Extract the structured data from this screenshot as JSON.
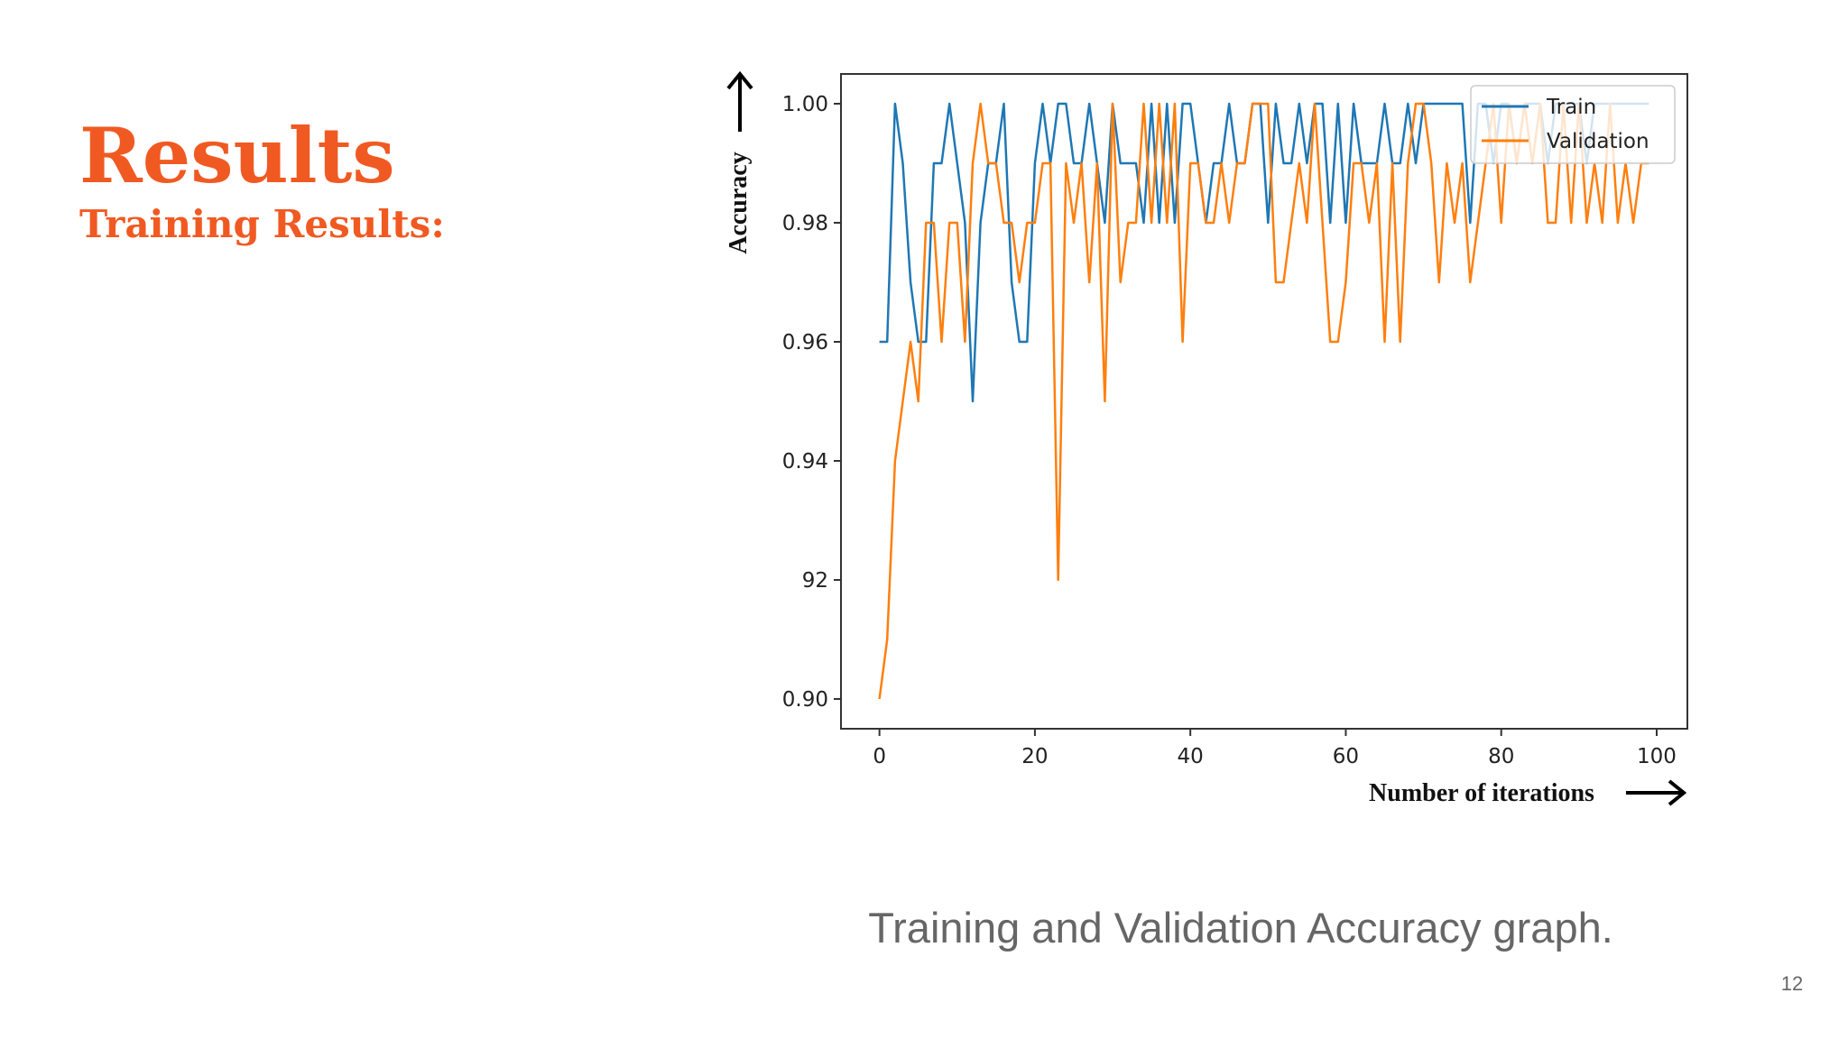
{
  "header": {
    "title": "Results",
    "subtitle": "Training Results:"
  },
  "caption": "Training and Validation Accuracy graph.",
  "page_number": "12",
  "chart_data": {
    "type": "line",
    "x_label": "Number of iterations",
    "y_label": "Accuracy",
    "x": [
      0,
      1,
      2,
      3,
      4,
      5,
      6,
      7,
      8,
      9,
      10,
      11,
      12,
      13,
      14,
      15,
      16,
      17,
      18,
      19,
      20,
      21,
      22,
      23,
      24,
      25,
      26,
      27,
      28,
      29,
      30,
      31,
      32,
      33,
      34,
      35,
      36,
      37,
      38,
      39,
      40,
      41,
      42,
      43,
      44,
      45,
      46,
      47,
      48,
      49,
      50,
      51,
      52,
      53,
      54,
      55,
      56,
      57,
      58,
      59,
      60,
      61,
      62,
      63,
      64,
      65,
      66,
      67,
      68,
      69,
      70,
      71,
      72,
      73,
      74,
      75,
      76,
      77,
      78,
      79,
      80,
      81,
      82,
      83,
      84,
      85,
      86,
      87,
      88,
      89,
      90,
      91,
      92,
      93,
      94,
      95,
      96,
      97,
      98,
      99
    ],
    "series": [
      {
        "name": "Train",
        "color": "#1f77b4",
        "values": [
          0.96,
          0.96,
          1.0,
          0.99,
          0.97,
          0.96,
          0.96,
          0.99,
          0.99,
          1.0,
          0.99,
          0.98,
          0.95,
          0.98,
          0.99,
          0.99,
          1.0,
          0.97,
          0.96,
          0.96,
          0.99,
          1.0,
          0.99,
          1.0,
          1.0,
          0.99,
          0.99,
          1.0,
          0.99,
          0.98,
          1.0,
          0.99,
          0.99,
          0.99,
          0.98,
          1.0,
          0.98,
          1.0,
          0.98,
          1.0,
          1.0,
          0.99,
          0.98,
          0.99,
          0.99,
          1.0,
          0.99,
          0.99,
          1.0,
          1.0,
          0.98,
          1.0,
          0.99,
          0.99,
          1.0,
          0.99,
          1.0,
          1.0,
          0.98,
          1.0,
          0.98,
          1.0,
          0.99,
          0.99,
          0.99,
          1.0,
          0.99,
          0.99,
          1.0,
          0.99,
          1.0,
          1.0,
          1.0,
          1.0,
          1.0,
          1.0,
          0.98,
          1.0,
          1.0,
          0.99,
          1.0,
          1.0,
          0.99,
          1.0,
          1.0,
          1.0,
          0.99,
          1.0,
          1.0,
          1.0,
          1.0,
          0.99,
          1.0,
          1.0,
          1.0,
          1.0,
          1.0,
          1.0,
          1.0,
          1.0
        ]
      },
      {
        "name": "Validation",
        "color": "#ff7f0e",
        "values": [
          0.9,
          0.91,
          0.94,
          0.95,
          0.96,
          0.95,
          0.98,
          0.98,
          0.96,
          0.98,
          0.98,
          0.96,
          0.99,
          1.0,
          0.99,
          0.99,
          0.98,
          0.98,
          0.97,
          0.98,
          0.98,
          0.99,
          0.99,
          0.92,
          0.99,
          0.98,
          0.99,
          0.97,
          0.99,
          0.95,
          1.0,
          0.97,
          0.98,
          0.98,
          1.0,
          0.98,
          1.0,
          0.98,
          1.0,
          0.96,
          0.99,
          0.99,
          0.98,
          0.98,
          0.99,
          0.98,
          0.99,
          0.99,
          1.0,
          1.0,
          1.0,
          0.97,
          0.97,
          0.98,
          0.99,
          0.98,
          1.0,
          0.98,
          0.96,
          0.96,
          0.97,
          0.99,
          0.99,
          0.98,
          0.99,
          0.96,
          0.99,
          0.96,
          0.99,
          1.0,
          1.0,
          0.99,
          0.97,
          0.99,
          0.98,
          0.99,
          0.97,
          0.98,
          0.99,
          1.0,
          0.98,
          1.0,
          0.99,
          1.0,
          0.99,
          1.0,
          0.98,
          0.98,
          1.0,
          0.98,
          1.0,
          0.98,
          0.99,
          0.98,
          1.0,
          0.98,
          0.99,
          0.98,
          0.99,
          0.99
        ]
      }
    ],
    "xlim": [
      -4.95,
      103.95
    ],
    "xticks": [
      0,
      20,
      40,
      60,
      80,
      100
    ],
    "ylim": [
      0.895,
      1.005
    ],
    "yticks": [
      {
        "value": 0.9,
        "label": "0.90"
      },
      {
        "value": 0.92,
        "label": "92"
      },
      0.94,
      0.96,
      0.98,
      {
        "value": 1,
        "label": "1.00"
      }
    ],
    "legend": "upper right",
    "grid": false
  }
}
